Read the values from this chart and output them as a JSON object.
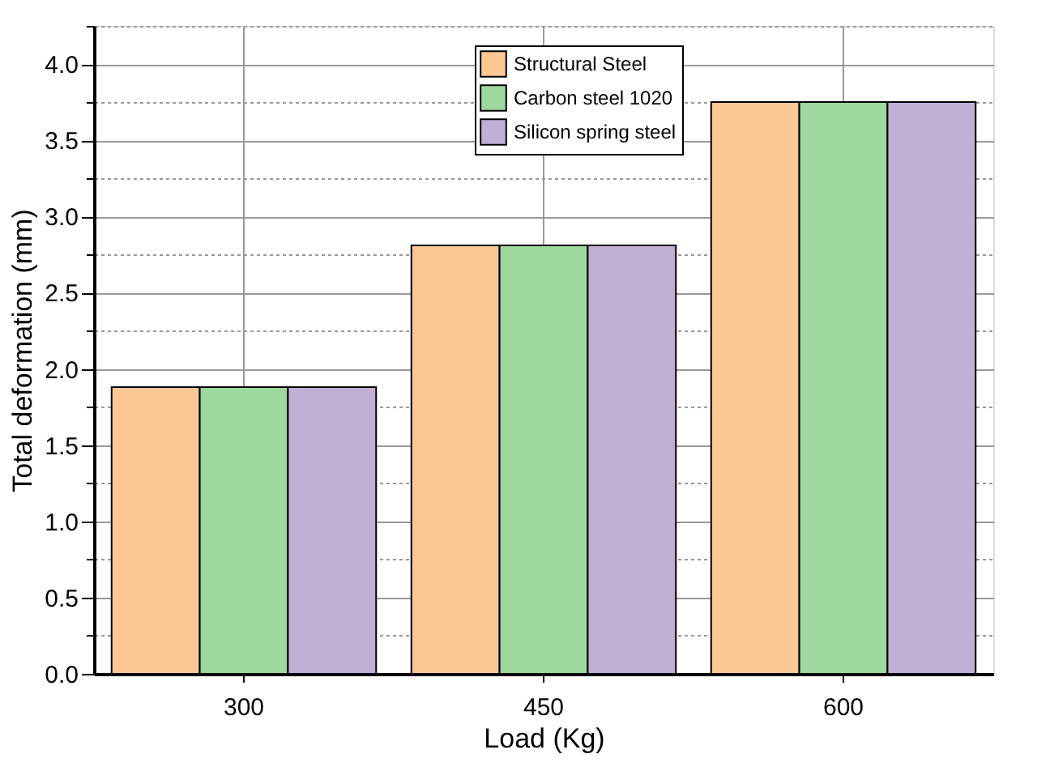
{
  "chart_data": {
    "type": "bar",
    "xlabel": "Load (Kg)",
    "ylabel": "Total deformation (mm)",
    "categories": [
      "300",
      "450",
      "600"
    ],
    "series": [
      {
        "name": "Structural Steel",
        "color": "#fbc793",
        "values": [
          1.88,
          2.81,
          3.75
        ]
      },
      {
        "name": "Carbon steel 1020",
        "color": "#9dd99c",
        "values": [
          1.88,
          2.81,
          3.75
        ]
      },
      {
        "name": "Silicon spring steel",
        "color": "#c0b0d6",
        "values": [
          1.88,
          2.81,
          3.75
        ]
      }
    ],
    "ylim": [
      0,
      4.25
    ],
    "yticks": [
      {
        "value": 0,
        "label": "0.0"
      },
      {
        "value": 0.25,
        "label": null
      },
      0.5,
      {
        "value": 0.75,
        "label": null
      },
      {
        "value": 1,
        "label": "1.0"
      },
      {
        "value": 1.25,
        "label": null
      },
      1.5,
      {
        "value": 1.75,
        "label": null
      },
      {
        "value": 2,
        "label": "2.0"
      },
      {
        "value": 2.25,
        "label": null
      },
      2.5,
      {
        "value": 2.75,
        "label": null
      },
      {
        "value": 3,
        "label": "3.0"
      },
      {
        "value": 3.25,
        "label": null
      },
      3.5,
      {
        "value": 3.75,
        "label": null
      },
      {
        "value": 4,
        "label": "4.0"
      },
      {
        "value": 4.25,
        "label": null
      }
    ],
    "grid": true,
    "legend": "top"
  }
}
